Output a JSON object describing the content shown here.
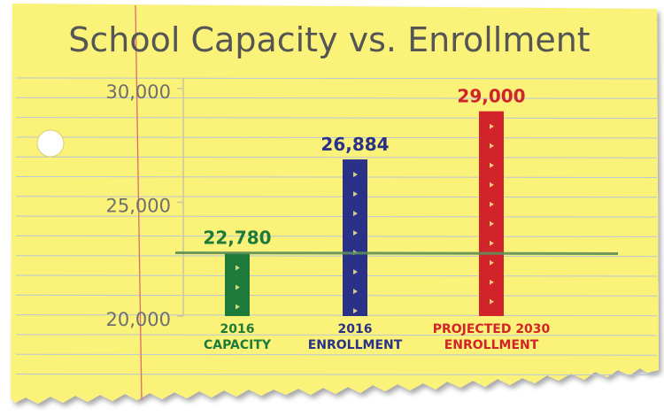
{
  "chart_data": {
    "type": "bar",
    "title": "School Capacity vs. Enrollment",
    "categories": [
      "2016 CAPACITY",
      "2016 ENROLLMENT",
      "PROJECTED 2030 ENROLLMENT"
    ],
    "category_lines": [
      [
        "2016",
        "CAPACITY"
      ],
      [
        "2016",
        "ENROLLMENT"
      ],
      [
        "PROJECTED 2030",
        "ENROLLMENT"
      ]
    ],
    "values": [
      22780,
      26884,
      29000
    ],
    "value_labels": [
      "22,780",
      "26,884",
      "29,000"
    ],
    "bar_colors": [
      "#1e7a3a",
      "#2a3189",
      "#d2232a"
    ],
    "ylim": [
      20000,
      30000
    ],
    "y_ticks": [
      20000,
      25000,
      30000
    ],
    "y_tick_labels": [
      "20,000",
      "25,000",
      "30,000"
    ],
    "reference_line": {
      "value": 22780,
      "color": "#5e8f5a"
    },
    "xlabel": "",
    "ylabel": "",
    "grid": true
  },
  "colors": {
    "paper": "#fbf27a",
    "rule_line": "#b9c6d6",
    "margin_line": "#e06a6a",
    "axis_line": "#c9c59a",
    "title_ink": "#555555",
    "tick_ink": "#6f6f6f"
  }
}
